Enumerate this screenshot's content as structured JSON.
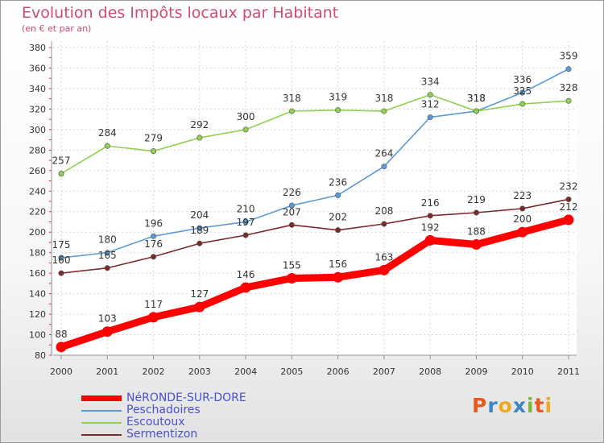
{
  "header": {
    "title": "Evolution des Impôts locaux par Habitant",
    "subtitle": "(en € et par an)"
  },
  "brand": {
    "letters": [
      "P",
      "r",
      "o",
      "x",
      "i",
      "t",
      "i"
    ],
    "colors": [
      "#e85a1e",
      "#3a86c8",
      "#f2a81d",
      "#3a86c8",
      "#79b93a",
      "#e85a1e",
      "#f2a81d"
    ]
  },
  "chart_data": {
    "type": "line",
    "x": [
      "2000",
      "2001",
      "2002",
      "2003",
      "2004",
      "2005",
      "2006",
      "2007",
      "2008",
      "2009",
      "2010",
      "2011"
    ],
    "ylim": [
      80,
      380
    ],
    "yticks": [
      80,
      100,
      120,
      140,
      160,
      180,
      200,
      220,
      240,
      260,
      280,
      300,
      320,
      340,
      360,
      380
    ],
    "grid": true,
    "legend_position": "bottom-left",
    "series": [
      {
        "name": "Peschadoires",
        "color": "#5b9bd5",
        "values": [
          175,
          180,
          196,
          204,
          210,
          226,
          236,
          264,
          312,
          318,
          336,
          359
        ]
      },
      {
        "name": "Escoutoux",
        "color": "#8fd14f",
        "values": [
          257,
          284,
          279,
          292,
          300,
          318,
          319,
          318,
          334,
          318,
          325,
          328
        ]
      },
      {
        "name": "Sermentizon",
        "color": "#7a2a2a",
        "values": [
          160,
          165,
          176,
          189,
          197,
          207,
          202,
          208,
          216,
          219,
          223,
          232
        ]
      },
      {
        "name": "NéRONDE-SUR-DORE",
        "color": "#ff0000",
        "values": [
          88,
          103,
          117,
          127,
          146,
          155,
          156,
          163,
          192,
          188,
          200,
          212
        ]
      }
    ],
    "legend_order": [
      3,
      0,
      1,
      2
    ]
  }
}
